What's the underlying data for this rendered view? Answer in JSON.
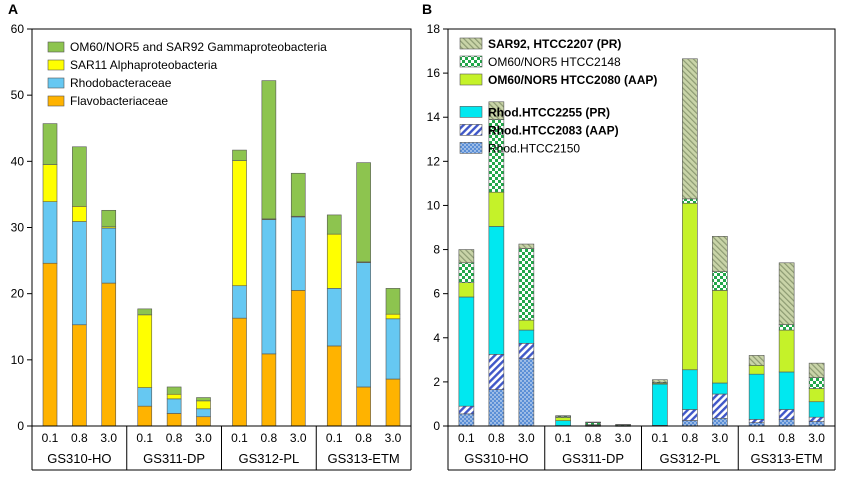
{
  "chart_data": [
    {
      "panel_label": "A",
      "type": "bar",
      "stacked": true,
      "ylim": [
        0,
        60
      ],
      "yticks": [
        0,
        10,
        20,
        30,
        40,
        50,
        60
      ],
      "grid": false,
      "legend_position": "top-right",
      "groups": [
        {
          "label": "GS310-HO",
          "categories": [
            "0.1",
            "0.8",
            "3.0"
          ]
        },
        {
          "label": "GS311-DP",
          "categories": [
            "0.1",
            "0.8",
            "3.0"
          ]
        },
        {
          "label": "GS312-PL",
          "categories": [
            "0.1",
            "0.8",
            "3.0"
          ]
        },
        {
          "label": "GS313-ETM",
          "categories": [
            "0.1",
            "0.8",
            "3.0"
          ]
        }
      ],
      "series": [
        {
          "name": "Flavobacteriaceae",
          "color": "#FFB300",
          "pattern": "solid",
          "values": [
            24.6,
            15.3,
            21.6,
            3.0,
            1.9,
            1.4,
            16.3,
            10.9,
            20.5,
            12.1,
            5.9,
            7.1
          ]
        },
        {
          "name": "Rhodobacteraceae",
          "color": "#66C8F2",
          "pattern": "solid",
          "values": [
            9.3,
            15.6,
            8.3,
            2.8,
            2.2,
            1.2,
            4.9,
            20.3,
            11.1,
            8.7,
            18.8,
            9.1
          ]
        },
        {
          "name": "SAR11 Alphaproteobacteria",
          "color": "#FFFF00",
          "pattern": "solid",
          "values": [
            5.6,
            2.3,
            0.2,
            11.0,
            0.7,
            1.2,
            18.9,
            0.1,
            0.1,
            8.2,
            0.1,
            0.7
          ]
        },
        {
          "name": "OM60/NOR5 and SAR92 Gammaproteobacteria",
          "color": "#8DC44F",
          "pattern": "solid",
          "values": [
            6.2,
            9.0,
            2.5,
            0.9,
            1.1,
            0.5,
            1.6,
            20.9,
            6.5,
            2.9,
            15.0,
            3.9
          ]
        }
      ]
    },
    {
      "panel_label": "B",
      "type": "bar",
      "stacked": true,
      "ylim": [
        0,
        18
      ],
      "yticks": [
        0,
        2,
        4,
        6,
        8,
        10,
        12,
        14,
        16,
        18
      ],
      "grid": false,
      "legend_position": "top-right",
      "groups": [
        {
          "label": "GS310-HO",
          "categories": [
            "0.1",
            "0.8",
            "3.0"
          ]
        },
        {
          "label": "GS311-DP",
          "categories": [
            "0.1",
            "0.8",
            "3.0"
          ]
        },
        {
          "label": "GS312-PL",
          "categories": [
            "0.1",
            "0.8",
            "3.0"
          ]
        },
        {
          "label": "GS313-ETM",
          "categories": [
            "0.1",
            "0.8",
            "3.0"
          ]
        }
      ],
      "series": [
        {
          "name": "Rhod.HTCC2150",
          "color": "#5B8FD6",
          "pattern": "dots",
          "bold": false,
          "values": [
            0.55,
            1.65,
            3.05,
            0.0,
            0.0,
            0.0,
            0.0,
            0.25,
            0.35,
            0.15,
            0.3,
            0.2
          ]
        },
        {
          "name": "Rhod.HTCC2083 (AAP)",
          "color": "#3F57C8",
          "pattern": "diagonal",
          "bold": true,
          "values": [
            0.35,
            1.6,
            0.7,
            0.02,
            0.01,
            0.0,
            0.03,
            0.5,
            1.1,
            0.15,
            0.45,
            0.2
          ]
        },
        {
          "name": "Rhod.HTCC2255 (PR)",
          "color": "#00E8F0",
          "pattern": "solid",
          "bold": true,
          "values": [
            4.95,
            5.8,
            0.6,
            0.22,
            0.02,
            0.0,
            1.87,
            1.8,
            0.5,
            2.05,
            1.7,
            0.7
          ]
        },
        {
          "name": "OM60/NOR5 HTCC2080 (AAP)",
          "color": "#C5F229",
          "pattern": "solid",
          "bold": true,
          "values": [
            0.65,
            1.55,
            0.45,
            0.15,
            0.03,
            0.01,
            0.04,
            7.55,
            4.2,
            0.4,
            1.9,
            0.6
          ]
        },
        {
          "name": "OM60/NOR5 HTCC2148",
          "color": "#22A84A",
          "pattern": "checker",
          "bold": false,
          "values": [
            0.9,
            3.3,
            3.25,
            0.05,
            0.1,
            0.05,
            0.04,
            0.2,
            0.85,
            0.0,
            0.25,
            0.5
          ]
        },
        {
          "name": "SAR92, HTCC2207 (PR)",
          "color": "#AFC08A",
          "pattern": "hatch",
          "bold": true,
          "values": [
            0.6,
            0.8,
            0.2,
            0.03,
            0.02,
            0.01,
            0.12,
            6.35,
            1.6,
            0.45,
            2.8,
            0.65
          ]
        }
      ]
    }
  ]
}
